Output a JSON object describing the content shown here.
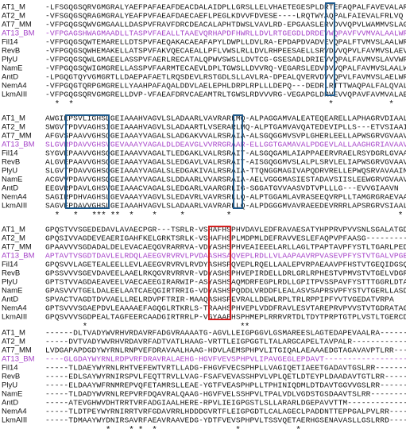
{
  "blocks": [
    {
      "rows": [
        {
          "name": "AT1_M",
          "seq": "-LFSGQGSQRVGMGRALYAEFPAFAEAFDEACDALAIDPLLGRSLLELVHAETEGESPLDRTEFAQPALFAVEVALARLLG"
        },
        {
          "name": "AT2_M",
          "seq": "-VFSGQGSQRAGMGRALYEAFPVFAEAFDAECAEFLPEGLKDVVFDVESE----LRQTWYAQPALFAIEVALFRLVQ"
        },
        {
          "name": "AT7_MM",
          "seq": "-VFPGQGSQWVGMGAALLDASPVFRAVFDRCDEACALAPHTDWSLVAVLRD-EPGAASLERVDVVQPVLWAMMVSLAGLWT"
        },
        {
          "name": "AT13_BM",
          "seq": "-VFPGAGSHWAGMAADLLTASPVFAEALLTAAEVQRHAPDFHWRLLDVLRTGEGDLDRDEVWQPAVFVVMVALAALWR"
        },
        {
          "name": "Fil14",
          "seq": "-VFPGQGSQWTEMARELLDTSPVFAEQAKACAEAFAPYLDWPLLDVLRA-EPDAPDVADVEVQPALFTVMVSLAALWR"
        },
        {
          "name": "RevB",
          "seq": "-VFPGQGSQWHEMAKELLATSPVFAKVQECAEALLPFLVWSLRLLDVLRHPEESAELLSRVDVVQPVLFAVMVSLAEVWR"
        },
        {
          "name": "PlyU",
          "seq": "-VFPGQGSQWLGMAEELASSPVFAERLRECATALQPWVSWSLLDVTCG-GSESADLDRIEVVQPALFAVMVSLAVVWR"
        },
        {
          "name": "NamE",
          "seq": "-VFPGQGSQWIGMGRELLASSPVFAARMTECAEVLDPLTGWSLLDVVRQ-VEGARSLEDVDVVQPALFAVMVSLAALWR"
        },
        {
          "name": "AntD",
          "seq": "-LPGQGTQYVGMGRTLLDAEPAFAETLRQSDEVLRSTGDLSLLAVLRA-DPEALQVERVDVVQPVLFAVMVSLAELWR"
        },
        {
          "name": "NemA4",
          "seq": "-VFPGQGTQRPGMGRELLYAAHPAFAQALDDVLAELEPHLDRPLRPLLLDEPQ---DEDRLRTTTWAQPALFALQVALFRLLE"
        },
        {
          "name": "LkmAIII",
          "seq": "-VFPGQGSQRVGMGRELLDVP-VFAEAFDRVCAEAMTRLTGWSLRDVVVRG-VEGAPGLDRVEVVQPAVFAVMVALAEVWR"
        }
      ],
      "conservation": "  *  *                                                       *            *"
    },
    {
      "rows": [
        {
          "name": "AT1_M",
          "seq": "AWGIEPSVLIGHSLGEIAAAHVAGVLSLADAARLVAVRARLMQ-ALPAGGAMVALEATEQEARELLAPHAGRVDIAALN"
        },
        {
          "name": "AT2_M",
          "seq": "SWGVTPDVVAGHSIGEIAAAHVAGVLSLADAARTLVSERARLMQ-ALPTGAMVAVQATEDEVIPLLS---ETVSIAAIN"
        },
        {
          "name": "AT7_MM",
          "seq": "AFGVSPAAVVGHSQGEIAAAYVAGALSLADGAKVVALRSRAIA-ALSGQGGMVSVPLGHERLEELLAPWSGRVGVAAVN"
        },
        {
          "name": "AT13_BM",
          "seq": "SLGVRPDAVVGHSVGEVAAAYVAGALDLDEAVGLVVRRGRAAR-ELLGGTGAMAVALPDGEVLALLAAGHGRIAVAAVN"
        },
        {
          "name": "Fil14",
          "seq": "SYGVEPAAVVGHSQGEIAAAVVAGALTLEDGAKLVALRSRAIT-ALSGQGAMLAIAPPAEERVRAELRSYDGRLGVAAVN"
        },
        {
          "name": "RevB",
          "seq": "ALGVEPAAVVGHSQGEIAAAYVAGALSLEDGAVLVALRSRAIT-AISGQGGMVSLALPLSRVLELIAPWSGRVGVAAVN"
        },
        {
          "name": "PlyU",
          "seq": "SLGVTPDAVVGHSQGEIAAAYVAGALSLEDGAKIVALRSRAIA-TTQNGGMAGIVAPQDRVRELLEPWQSRVAVAAIN"
        },
        {
          "name": "NamE",
          "seq": "ACGVVPDAVVGHSQGEIAAAYVAGALSLDDAARLVVARSRAIA-AELVGGGMASIESTADAVSIISLEEWGRVGVAAVN"
        },
        {
          "name": "AntD",
          "seq": "EEGVRPDAVLGHSVGEIAAACVAGALSLEDGARLVAARGRLIG-SGGATGVVAASVDTVPLLLG---EVVGIAAVN"
        },
        {
          "name": "NemA4",
          "seq": "SAGIRPDHVAGHSLGEVAAAYVAGVLSLEDAVRLVAVRSRLLQ-ALPTGGAMLAVRASEEQVRPLLTAMGRGRAEVAAVN"
        },
        {
          "name": "LkmAIII",
          "seq": "SAGVEPDAVVGHSLGEIAAAHVAGVLSLADAARLVAVRARLLQ-ALPDGGGMVAVRAEEDEVRRRLAPSRGRVSIAALN"
        }
      ],
      "conservation": "  *   *   *** **  *    *     *         *                                    *"
    },
    {
      "rows": [
        {
          "name": "AT1_M",
          "seq": "GPQSTVVSGEDEDAVLAVAECPGR---TSRLR-VSHAFHSPHVDAVLEDFRAVAESATYHPPRVPVVSNLSGALATGD-"
        },
        {
          "name": "AT2_M",
          "seq": "GPQSIVVAGDEVEAERIGAHFKELGRKTSRLK-VSHAFHSPLMDPMLDEFRAVVESLEFAQPVPFAASG---------"
        },
        {
          "name": "AT7_MM",
          "seq": "GPAAVVVSGDADALDELEVACAEQGVRARRVA-VDYASHSPHVEAIEEELARLLAGLTPAPTAVPFYSTLTGARLPEDG"
        },
        {
          "name": "AT13_BM",
          "seq": "APTAVTVSGDTDAVLELRDQLAEEGVRVRVLPVDAASHSAQVEPLRDLLVLAAPAAVRPVASEVPFYSTVTGALVPGE"
        },
        {
          "name": "Fil14",
          "seq": "GPQSVVLAGETEALEELLEVLAEEGVRVRVLRVDYASHSPQVEPLRQELLAALEPVRPAEAAVPFHSTVTGEQIDGSQ"
        },
        {
          "name": "RevB",
          "seq": "GPSSVVVSGEVDAVEELAAELRKQGVRVRRVR-VDYASHSPHVEPIRDELLDRLGRLRPHESTVPMVSTVTGELVDGR"
        },
        {
          "name": "PlyU",
          "seq": "GPTSTVVAGDAEAVEELVAECAEEGIRARWIP-ASYASHSAQMDRFEGPLRDLLGPITPVSSPAVFYSTTTGGRLDTA"
        },
        {
          "name": "NamE",
          "seq": "GPASVVVTGELDALEELAATCAEQGIRTRRIG-VDYASHSPQDDLVRDDFLEALASVSAPRSVPFYSTVTGERLLASD"
        },
        {
          "name": "AntD",
          "seq": "SPVACTVAGDTDVVAELLRELRDVPFTRIR-MAAQASHSPEVRALLDEWLRPLTRLRPPIPFYVTVGEDATVRPA"
        },
        {
          "name": "NemA4",
          "seq": "GPTSVVVSGAEPDVLEAAAAEFAGQGLRTKRLS-TRAAHSPHVEPLVDDFRAVLESVTAREPRVPVVSTVTGDRATAG"
        },
        {
          "name": "LkmAIII",
          "seq": "GPQSVVVSGDPEALTAGFEERCAADGIRTRRLP-VGYAAFHSPHMEPLRRRVRTDLTDYTPRPTGTPLVSTLTGERCDTG-"
        }
      ],
      "conservation": "        *                                 **"
    },
    {
      "rows": [
        {
          "name": "AT1_M",
          "seq": "------DLTVADYWVRHVRDAVRFADGVRAAAATG-AGVLLEIGPGGVLGSMAREESLAGTEDAPEVAALRA-------"
        },
        {
          "name": "AT2_M",
          "seq": "-----DVTVADYWVRHVRDAVRFADTVATLHAAG-VRTTLEIGPGGTLTALARGCAPELTAVPALR-------------"
        },
        {
          "name": "AT7_MM",
          "seq": "LVDGAPAPDGDYWYRNLRNPVEFDRAVAALHAAG-HDVLAEMSPHPVLITGIQALAEAAAEDGTAGAVAVPTLRR----"
        },
        {
          "name": "AT13_BM",
          "seq": "----GLGDAYWYRNLRDPVRFDRAVRALAEHG-HGVFVEVSPHPVLIPAVGEGLEPDAVT------------------"
        },
        {
          "name": "Fil14",
          "seq": "-----TLDAEYWYRNLRHTVEFEWTVRTLLADG-FHGVFVECSPHPLLVAGIQETIAEETGADAVTGSLRR--------"
        },
        {
          "name": "RevB",
          "seq": "-----EDLSAYWYRNIRSPVLFEQTTRVLLVAG-FSAFVEVASSHPVLVPLQETLDTEYPLDAADAVTGTLRR-------"
        },
        {
          "name": "PlyU",
          "seq": "-----ELDAAYWFRNMREPVQFETAMRSLLEAE-YGTFVEASPHPLLTPHINIQDMLDTDAVTGGVVGSLRR--------"
        },
        {
          "name": "NamE",
          "seq": "-----TLDADYWVRNLREPVRFDQAVRALQAAG-HGVFVELSSHPVLTPALVDLVGDSTGSDAAVTSLRR---------"
        },
        {
          "name": "AntD",
          "seq": "-----ATEVGHWVDHTRRTVRFADGIAALHERE-RPVLIEIGPGSTLSLLARARLDGEPAVVTTM--------------"
        },
        {
          "name": "NemA4",
          "seq": "-----TLDTPEYWYRNIRRTVRFGDAVRRLHDDDGVRTFLEIGPGDTLCALAGECLPADDNTTEPPGALPVLRR------"
        },
        {
          "name": "LkmAIII",
          "seq": "-----TDMAAYWYDNIRSAVRFAEAVRAAVEDG-YDTFVEVSPHPVLTSSVQETAERHGSENAVASLLGSLRRD------"
        }
      ],
      "conservation": "             *    * *  *                 *            *"
    }
  ]
}
